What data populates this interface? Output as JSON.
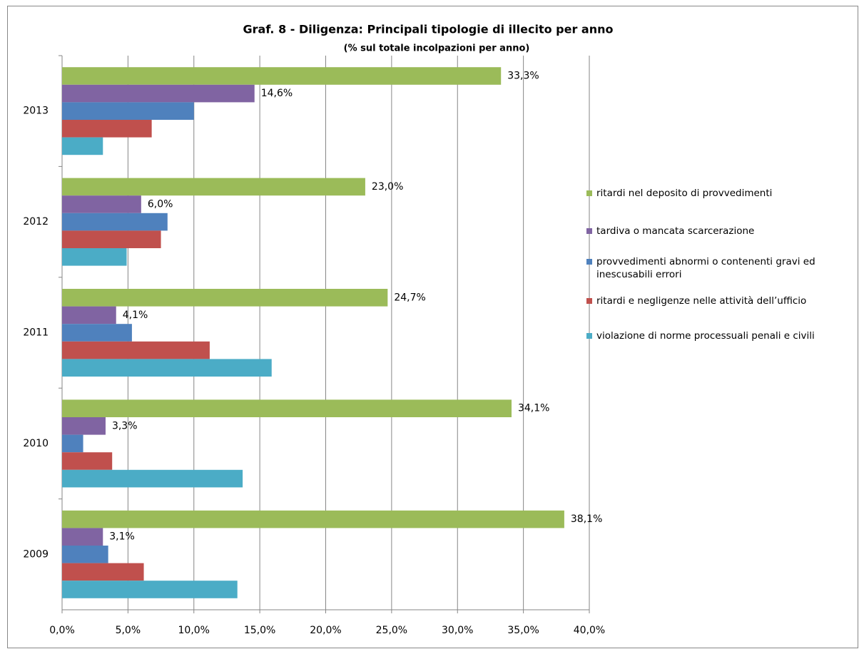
{
  "chart_data": {
    "type": "bar",
    "orientation": "horizontal",
    "title": "Graf. 8 - Diligenza: Principali tipologie di illecito per anno",
    "subtitle": "(% sul totale incolpazioni  per anno)",
    "categories": [
      "2013",
      "2012",
      "2011",
      "2010",
      "2009"
    ],
    "series": [
      {
        "name": "ritardi nel deposito di provvedimenti",
        "color": "#9bbb59",
        "values": [
          33.3,
          23.0,
          24.7,
          34.1,
          38.1
        ],
        "value_labels": [
          "33,3%",
          "23,0%",
          "24,7%",
          "34,1%",
          "38,1%"
        ]
      },
      {
        "name": "tardiva o mancata scarcerazione",
        "color": "#8064a2",
        "values": [
          14.6,
          6.0,
          4.1,
          3.3,
          3.1
        ],
        "value_labels": [
          "14,6%",
          "6,0%",
          "4,1%",
          "3,3%",
          "3,1%"
        ]
      },
      {
        "name": "provvedimenti abnormi o contenenti  gravi ed inescusabili errori",
        "color": "#4f81bd",
        "values": [
          10.0,
          8.0,
          5.3,
          1.6,
          3.5
        ]
      },
      {
        "name": "ritardi e negligenze nelle attività dell’ufficio",
        "color": "#c0504d",
        "values": [
          6.8,
          7.5,
          11.2,
          3.8,
          6.2
        ]
      },
      {
        "name": "violazione di norme processuali penali e civili",
        "color": "#4bacc6",
        "values": [
          3.1,
          4.9,
          15.9,
          13.7,
          13.3
        ]
      }
    ],
    "xlim": [
      0,
      40
    ],
    "xticks": [
      {
        "value": 0,
        "label": "0,0%"
      },
      {
        "value": 5,
        "label": "5,0%"
      },
      {
        "value": 10,
        "label": "10,0%"
      },
      {
        "value": 15,
        "label": "15,0%"
      },
      {
        "value": 20,
        "label": "20,0%"
      },
      {
        "value": 25,
        "label": "25,0%"
      },
      {
        "value": 30,
        "label": "30,0%"
      },
      {
        "value": 35,
        "label": "35,0%"
      },
      {
        "value": 40,
        "label": "40,0%"
      }
    ],
    "grid": true,
    "legend": "right"
  }
}
